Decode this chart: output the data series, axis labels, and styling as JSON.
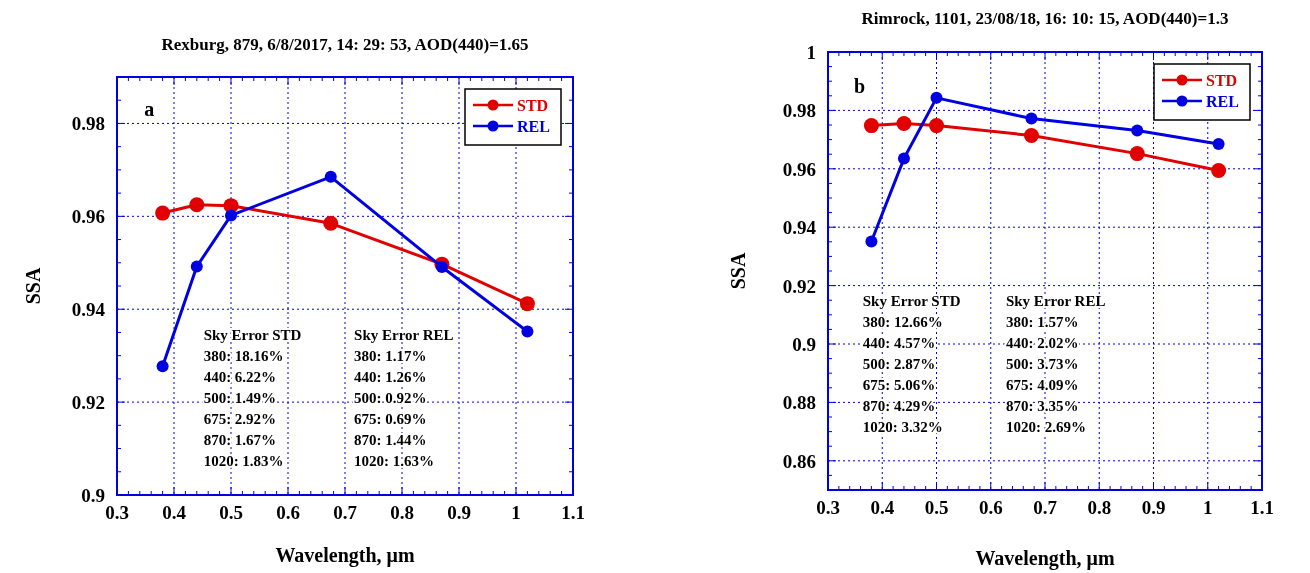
{
  "chart_data": [
    {
      "type": "line",
      "title": "Rexburg, 879, 6/8/2017, 14: 29: 53, AOD(440)=1.65",
      "xlabel": "Wavelength, μm",
      "ylabel": "SSA",
      "x": [
        0.38,
        0.44,
        0.5,
        0.675,
        0.87,
        1.02
      ],
      "series": [
        {
          "name": "STD",
          "color": "#e00000",
          "values": [
            0.9607,
            0.9625,
            0.9623,
            0.9585,
            0.9497,
            0.9412
          ]
        },
        {
          "name": "REL",
          "color": "#0000e0",
          "values": [
            0.9277,
            0.9492,
            0.9602,
            0.9685,
            0.9491,
            0.9352
          ]
        }
      ],
      "xlim": [
        0.3,
        1.1
      ],
      "xticks": [
        0.3,
        0.4,
        0.5,
        0.6,
        0.7,
        0.8,
        0.9,
        1,
        1.1
      ],
      "ylim": [
        0.9,
        0.99
      ],
      "yticks": [
        0.9,
        0.92,
        0.94,
        0.96,
        0.98
      ],
      "grid": true,
      "legend": "top right",
      "marker": "circle",
      "line_style": "solid",
      "annotations": [
        "a",
        "Sky Error STD\n380: 18.16%\n440: 6.22%\n500: 1.49%\n675: 2.92%\n870: 1.67%\n1020: 1.83%",
        "Sky Error REL\n380: 1.17%\n440: 1.26%\n500: 0.92%\n675: 0.69%\n870: 1.44%\n1020: 1.63%"
      ]
    },
    {
      "type": "line",
      "title": "Rimrock, 1101, 23/08/18, 16: 10: 15, AOD(440)=1.3",
      "xlabel": "Wavelength, μm",
      "ylabel": "SSA",
      "x": [
        0.38,
        0.44,
        0.5,
        0.675,
        0.87,
        1.02
      ],
      "series": [
        {
          "name": "STD",
          "color": "#e00000",
          "values": [
            0.9748,
            0.9755,
            0.9748,
            0.9714,
            0.9652,
            0.9594
          ]
        },
        {
          "name": "REL",
          "color": "#0000e0",
          "values": [
            0.9351,
            0.9635,
            0.9843,
            0.9772,
            0.9731,
            0.9685
          ]
        }
      ],
      "xlim": [
        0.3,
        1.1
      ],
      "xticks": [
        0.3,
        0.4,
        0.5,
        0.6,
        0.7,
        0.8,
        0.9,
        1,
        1.1
      ],
      "ylim": [
        0.85,
        1
      ],
      "yticks": [
        0.86,
        0.88,
        0.9,
        0.92,
        0.94,
        0.96,
        0.98,
        1
      ],
      "grid": true,
      "legend": "top right",
      "marker": "circle",
      "line_style": "solid",
      "annotations": [
        "b",
        "Sky Error STD\n380: 12.66%\n440: 4.57%\n500: 2.87%\n675: 5.06%\n870: 4.29%\n1020: 3.32%",
        "Sky Error REL\n380: 1.57%\n440: 2.02%\n500: 3.73%\n675: 4.09%\n870: 3.35%\n1020: 2.69%"
      ]
    }
  ]
}
